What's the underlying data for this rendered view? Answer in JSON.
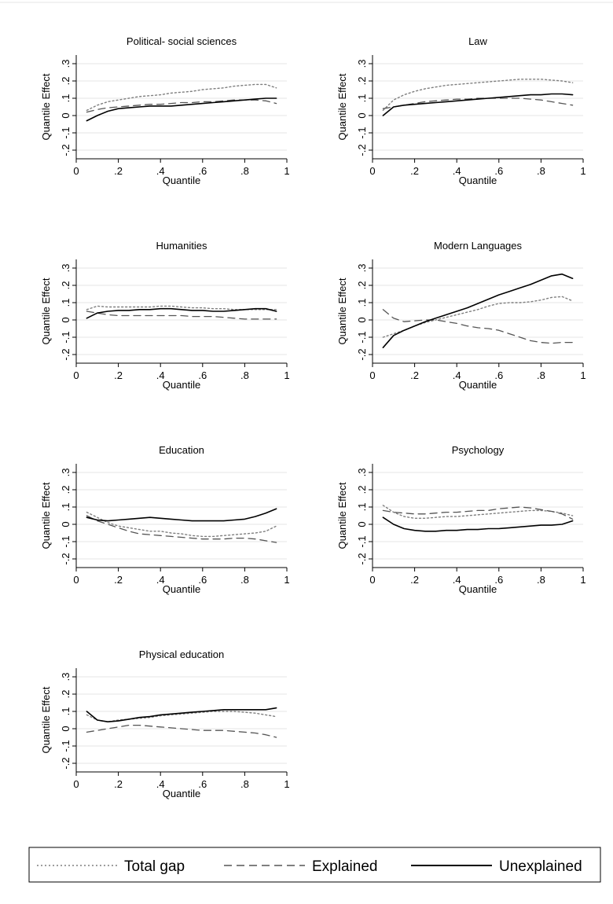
{
  "chart_data": {
    "type": "line",
    "x_ticks": [
      "0",
      ".2",
      ".4",
      ".6",
      ".8",
      "1"
    ],
    "y_ticks": [
      "-.2",
      "-.1",
      "0",
      ".1",
      ".2",
      ".3"
    ],
    "xlim": [
      0,
      1
    ],
    "ylim": [
      -0.25,
      0.35
    ],
    "xlabel": "Quantile",
    "ylabel": "Quantile Effect",
    "grid": true,
    "legend": {
      "position": "bottom",
      "entries": [
        {
          "label": "Total gap",
          "style": "dotted",
          "color": "#7f7f7f"
        },
        {
          "label": "Explained",
          "style": "dashed",
          "color": "#555555"
        },
        {
          "label": "Unexplained",
          "style": "solid",
          "color": "#000000"
        }
      ]
    },
    "x": [
      0.05,
      0.1,
      0.15,
      0.2,
      0.25,
      0.3,
      0.35,
      0.4,
      0.45,
      0.5,
      0.55,
      0.6,
      0.65,
      0.7,
      0.75,
      0.8,
      0.85,
      0.9,
      0.95
    ],
    "panels": [
      {
        "title": "Political- social sciences",
        "series": [
          {
            "name": "Total gap",
            "values": [
              0.03,
              0.06,
              0.08,
              0.09,
              0.1,
              0.11,
              0.115,
              0.12,
              0.13,
              0.135,
              0.14,
              0.15,
              0.155,
              0.16,
              0.17,
              0.175,
              0.18,
              0.18,
              0.16
            ]
          },
          {
            "name": "Explained",
            "values": [
              0.02,
              0.035,
              0.045,
              0.05,
              0.055,
              0.06,
              0.065,
              0.065,
              0.07,
              0.075,
              0.075,
              0.08,
              0.08,
              0.085,
              0.09,
              0.09,
              0.09,
              0.085,
              0.07
            ]
          },
          {
            "name": "Unexplained",
            "values": [
              -0.03,
              0.0,
              0.025,
              0.04,
              0.045,
              0.05,
              0.055,
              0.055,
              0.055,
              0.06,
              0.065,
              0.07,
              0.075,
              0.08,
              0.085,
              0.09,
              0.095,
              0.1,
              0.1
            ]
          }
        ]
      },
      {
        "title": "Law",
        "series": [
          {
            "name": "Total gap",
            "values": [
              0.03,
              0.09,
              0.12,
              0.14,
              0.155,
              0.165,
              0.175,
              0.18,
              0.185,
              0.19,
              0.195,
              0.2,
              0.205,
              0.21,
              0.21,
              0.21,
              0.205,
              0.2,
              0.19
            ]
          },
          {
            "name": "Explained",
            "values": [
              0.04,
              0.05,
              0.06,
              0.07,
              0.08,
              0.085,
              0.09,
              0.095,
              0.095,
              0.1,
              0.1,
              0.1,
              0.1,
              0.1,
              0.095,
              0.09,
              0.08,
              0.07,
              0.06
            ]
          },
          {
            "name": "Unexplained",
            "values": [
              0.0,
              0.05,
              0.06,
              0.065,
              0.07,
              0.075,
              0.08,
              0.085,
              0.09,
              0.095,
              0.1,
              0.105,
              0.11,
              0.115,
              0.12,
              0.12,
              0.125,
              0.125,
              0.12
            ]
          }
        ]
      },
      {
        "title": "Humanities",
        "series": [
          {
            "name": "Total gap",
            "values": [
              0.06,
              0.08,
              0.075,
              0.075,
              0.075,
              0.075,
              0.075,
              0.08,
              0.08,
              0.075,
              0.07,
              0.07,
              0.065,
              0.065,
              0.06,
              0.06,
              0.06,
              0.06,
              0.06
            ]
          },
          {
            "name": "Explained",
            "values": [
              0.05,
              0.04,
              0.03,
              0.025,
              0.025,
              0.025,
              0.025,
              0.025,
              0.025,
              0.025,
              0.02,
              0.02,
              0.02,
              0.015,
              0.01,
              0.005,
              0.005,
              0.005,
              0.005
            ]
          },
          {
            "name": "Unexplained",
            "values": [
              0.01,
              0.04,
              0.05,
              0.055,
              0.055,
              0.06,
              0.06,
              0.065,
              0.065,
              0.06,
              0.055,
              0.055,
              0.05,
              0.05,
              0.055,
              0.06,
              0.065,
              0.065,
              0.05
            ]
          }
        ]
      },
      {
        "title": "Modern Languages",
        "series": [
          {
            "name": "Total gap",
            "values": [
              -0.1,
              -0.08,
              -0.06,
              -0.035,
              -0.015,
              0.0,
              0.015,
              0.03,
              0.045,
              0.06,
              0.08,
              0.095,
              0.1,
              0.1,
              0.105,
              0.115,
              0.13,
              0.135,
              0.11
            ]
          },
          {
            "name": "Explained",
            "values": [
              0.06,
              0.01,
              -0.01,
              -0.005,
              0.0,
              0.0,
              -0.01,
              -0.02,
              -0.035,
              -0.045,
              -0.05,
              -0.06,
              -0.08,
              -0.1,
              -0.12,
              -0.13,
              -0.135,
              -0.13,
              -0.13
            ]
          },
          {
            "name": "Unexplained",
            "values": [
              -0.16,
              -0.09,
              -0.06,
              -0.035,
              -0.01,
              0.01,
              0.03,
              0.05,
              0.07,
              0.095,
              0.12,
              0.145,
              0.165,
              0.185,
              0.205,
              0.23,
              0.255,
              0.265,
              0.24
            ]
          }
        ]
      },
      {
        "title": "Education",
        "series": [
          {
            "name": "Total gap",
            "values": [
              0.07,
              0.04,
              0.01,
              -0.01,
              -0.02,
              -0.03,
              -0.04,
              -0.04,
              -0.05,
              -0.055,
              -0.065,
              -0.07,
              -0.07,
              -0.065,
              -0.06,
              -0.055,
              -0.05,
              -0.04,
              -0.01
            ]
          },
          {
            "name": "Explained",
            "values": [
              0.05,
              0.02,
              0.0,
              -0.02,
              -0.04,
              -0.055,
              -0.06,
              -0.065,
              -0.07,
              -0.075,
              -0.08,
              -0.085,
              -0.085,
              -0.085,
              -0.08,
              -0.08,
              -0.085,
              -0.095,
              -0.105
            ]
          },
          {
            "name": "Unexplained",
            "values": [
              0.04,
              0.025,
              0.02,
              0.025,
              0.03,
              0.035,
              0.04,
              0.035,
              0.03,
              0.025,
              0.02,
              0.02,
              0.02,
              0.02,
              0.025,
              0.03,
              0.045,
              0.065,
              0.09
            ]
          }
        ]
      },
      {
        "title": "Psychology",
        "series": [
          {
            "name": "Total gap",
            "values": [
              0.11,
              0.07,
              0.045,
              0.035,
              0.035,
              0.04,
              0.045,
              0.045,
              0.05,
              0.055,
              0.06,
              0.065,
              0.07,
              0.075,
              0.08,
              0.08,
              0.075,
              0.065,
              0.05
            ]
          },
          {
            "name": "Explained",
            "values": [
              0.08,
              0.07,
              0.065,
              0.06,
              0.06,
              0.065,
              0.07,
              0.07,
              0.075,
              0.08,
              0.08,
              0.09,
              0.095,
              0.1,
              0.095,
              0.085,
              0.075,
              0.06,
              0.03
            ]
          },
          {
            "name": "Unexplained",
            "values": [
              0.04,
              0.0,
              -0.025,
              -0.035,
              -0.04,
              -0.04,
              -0.035,
              -0.035,
              -0.03,
              -0.03,
              -0.025,
              -0.025,
              -0.02,
              -0.015,
              -0.01,
              -0.005,
              -0.005,
              0.0,
              0.02
            ]
          }
        ]
      },
      {
        "title": "Physical education",
        "series": [
          {
            "name": "Total gap",
            "values": [
              0.08,
              0.05,
              0.04,
              0.05,
              0.055,
              0.06,
              0.065,
              0.075,
              0.08,
              0.085,
              0.09,
              0.095,
              0.1,
              0.1,
              0.1,
              0.095,
              0.09,
              0.08,
              0.07
            ]
          },
          {
            "name": "Explained",
            "values": [
              -0.02,
              -0.01,
              0.0,
              0.01,
              0.02,
              0.02,
              0.015,
              0.01,
              0.005,
              0.0,
              -0.005,
              -0.01,
              -0.01,
              -0.01,
              -0.015,
              -0.02,
              -0.025,
              -0.035,
              -0.05
            ]
          },
          {
            "name": "Unexplained",
            "values": [
              0.1,
              0.05,
              0.04,
              0.045,
              0.055,
              0.065,
              0.07,
              0.08,
              0.085,
              0.09,
              0.095,
              0.1,
              0.105,
              0.11,
              0.11,
              0.11,
              0.11,
              0.11,
              0.12
            ]
          }
        ]
      }
    ]
  }
}
